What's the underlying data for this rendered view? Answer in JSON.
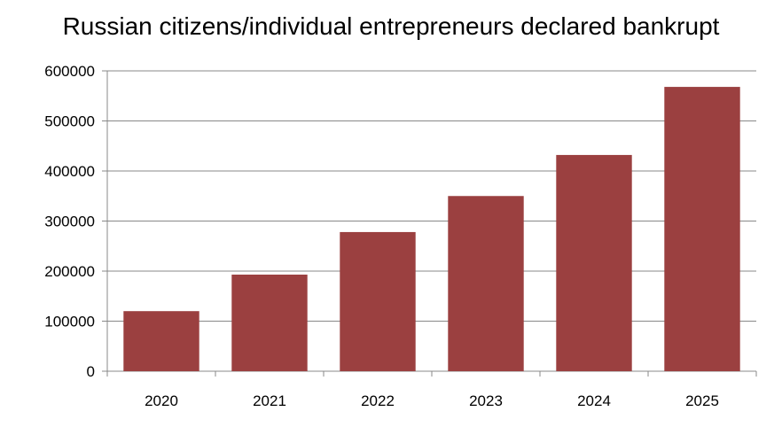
{
  "chart_data": {
    "type": "bar",
    "title": "Russian citizens/individual entrepreneurs declared bankrupt",
    "xlabel": "",
    "ylabel": "",
    "categories": [
      "2020",
      "2021",
      "2022",
      "2023",
      "2024",
      "2025"
    ],
    "values": [
      120000,
      193000,
      278000,
      350000,
      432000,
      568000
    ],
    "ylim": [
      0,
      600000
    ],
    "yticks": [
      "0",
      "100000",
      "200000",
      "300000",
      "400000",
      "500000",
      "600000"
    ],
    "grid": true,
    "legend": "none",
    "bar_color": "#9b4040"
  }
}
